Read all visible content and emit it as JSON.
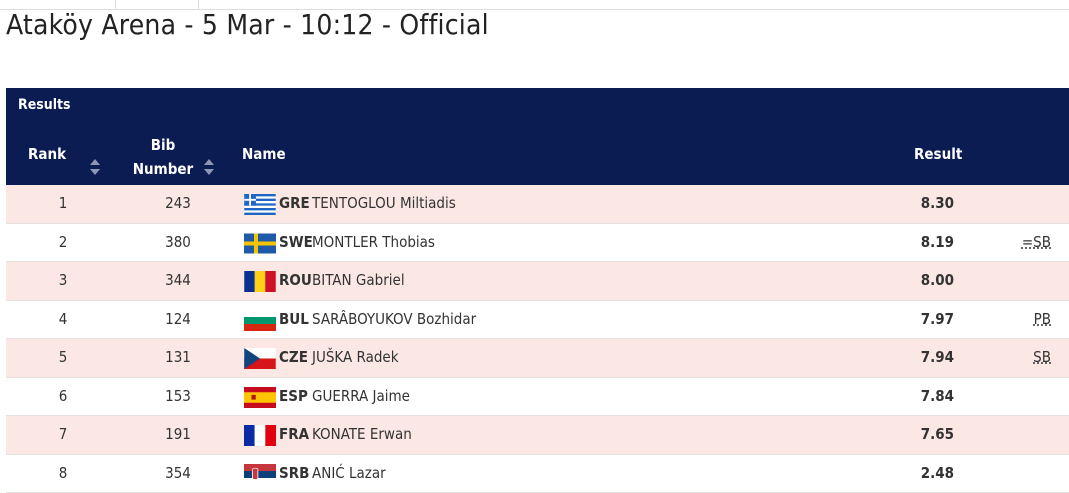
{
  "title": "Ataköy Arena - 5 Mar - 10:12 - Official",
  "table": {
    "caption": "Results",
    "columns": [
      "Rank",
      "Bib Number",
      "Name",
      "Result"
    ],
    "rows": [
      {
        "rank": "1",
        "bib": "243",
        "country": "GRE",
        "name": "TENTOGLOU Miltiadis",
        "result": "8.30"
      },
      {
        "rank": "2",
        "bib": "380",
        "country": "SWE",
        "name": "MONTLER Thobias",
        "result": "8.19",
        "note": "=SB"
      },
      {
        "rank": "3",
        "bib": "344",
        "country": "ROU",
        "name": "BITAN Gabriel",
        "result": "8.00"
      },
      {
        "rank": "4",
        "bib": "124",
        "country": "BUL",
        "name": "SARÂBOYUKOV Bozhidar",
        "result": "7.97",
        "note": "PB"
      },
      {
        "rank": "5",
        "bib": "131",
        "country": "CZE",
        "name": "JUŠKA Radek",
        "result": "7.94",
        "note": "SB"
      },
      {
        "rank": "6",
        "bib": "153",
        "country": "ESP",
        "name": "GUERRA Jaime",
        "result": "7.84"
      },
      {
        "rank": "7",
        "bib": "191",
        "country": "FRA",
        "name": "KONATE Erwan",
        "result": "7.65"
      },
      {
        "rank": "8",
        "bib": "354",
        "country": "SRB",
        "name": "ANIĆ Lazar",
        "result": "2.48"
      }
    ]
  }
}
